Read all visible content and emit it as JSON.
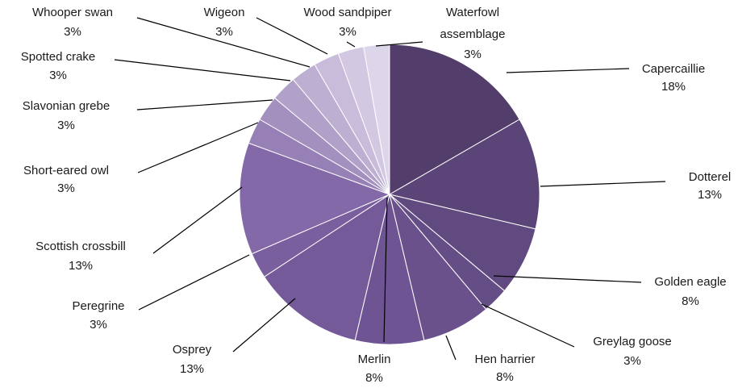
{
  "chart_data": {
    "type": "pie",
    "start_angle_deg": 0,
    "direction": "clockwise",
    "slices": [
      {
        "name": "Capercaillie",
        "value": 18,
        "label": "18%",
        "color": "#523d6b"
      },
      {
        "name": "Dotterel",
        "value": 13,
        "label": "13%",
        "color": "#5a4478"
      },
      {
        "name": "Golden eagle",
        "value": 8,
        "label": "8%",
        "color": "#614a80"
      },
      {
        "name": "Greylag goose",
        "value": 3,
        "label": "3%",
        "color": "#654e86"
      },
      {
        "name": "Hen harrier",
        "value": 8,
        "label": "8%",
        "color": "#6a518c"
      },
      {
        "name": "Merlin",
        "value": 8,
        "label": "8%",
        "color": "#6e5492"
      },
      {
        "name": "Osprey",
        "value": 13,
        "label": "13%",
        "color": "#745a99"
      },
      {
        "name": "Peregrine",
        "value": 3,
        "label": "3%",
        "color": "#7a5f9f"
      },
      {
        "name": "Scottish crossbill",
        "value": 13,
        "label": "13%",
        "color": "#8469a8"
      },
      {
        "name": "Short-eared owl",
        "value": 3,
        "label": "3%",
        "color": "#9680b5"
      },
      {
        "name": "Slavonian grebe",
        "value": 3,
        "label": "3%",
        "color": "#a390be"
      },
      {
        "name": "Spotted crake",
        "value": 3,
        "label": "3%",
        "color": "#b1a1c8"
      },
      {
        "name": "Whooper swan",
        "value": 3,
        "label": "3%",
        "color": "#bdafd2"
      },
      {
        "name": "Wigeon",
        "value": 3,
        "label": "3%",
        "color": "#c8bcda"
      },
      {
        "name": "Wood sandpiper",
        "value": 3,
        "label": "3%",
        "color": "#d2c8e2"
      },
      {
        "name": "Waterfowl assemblage",
        "value": 3,
        "label": "3%",
        "color": "#ddd5ea"
      }
    ]
  }
}
